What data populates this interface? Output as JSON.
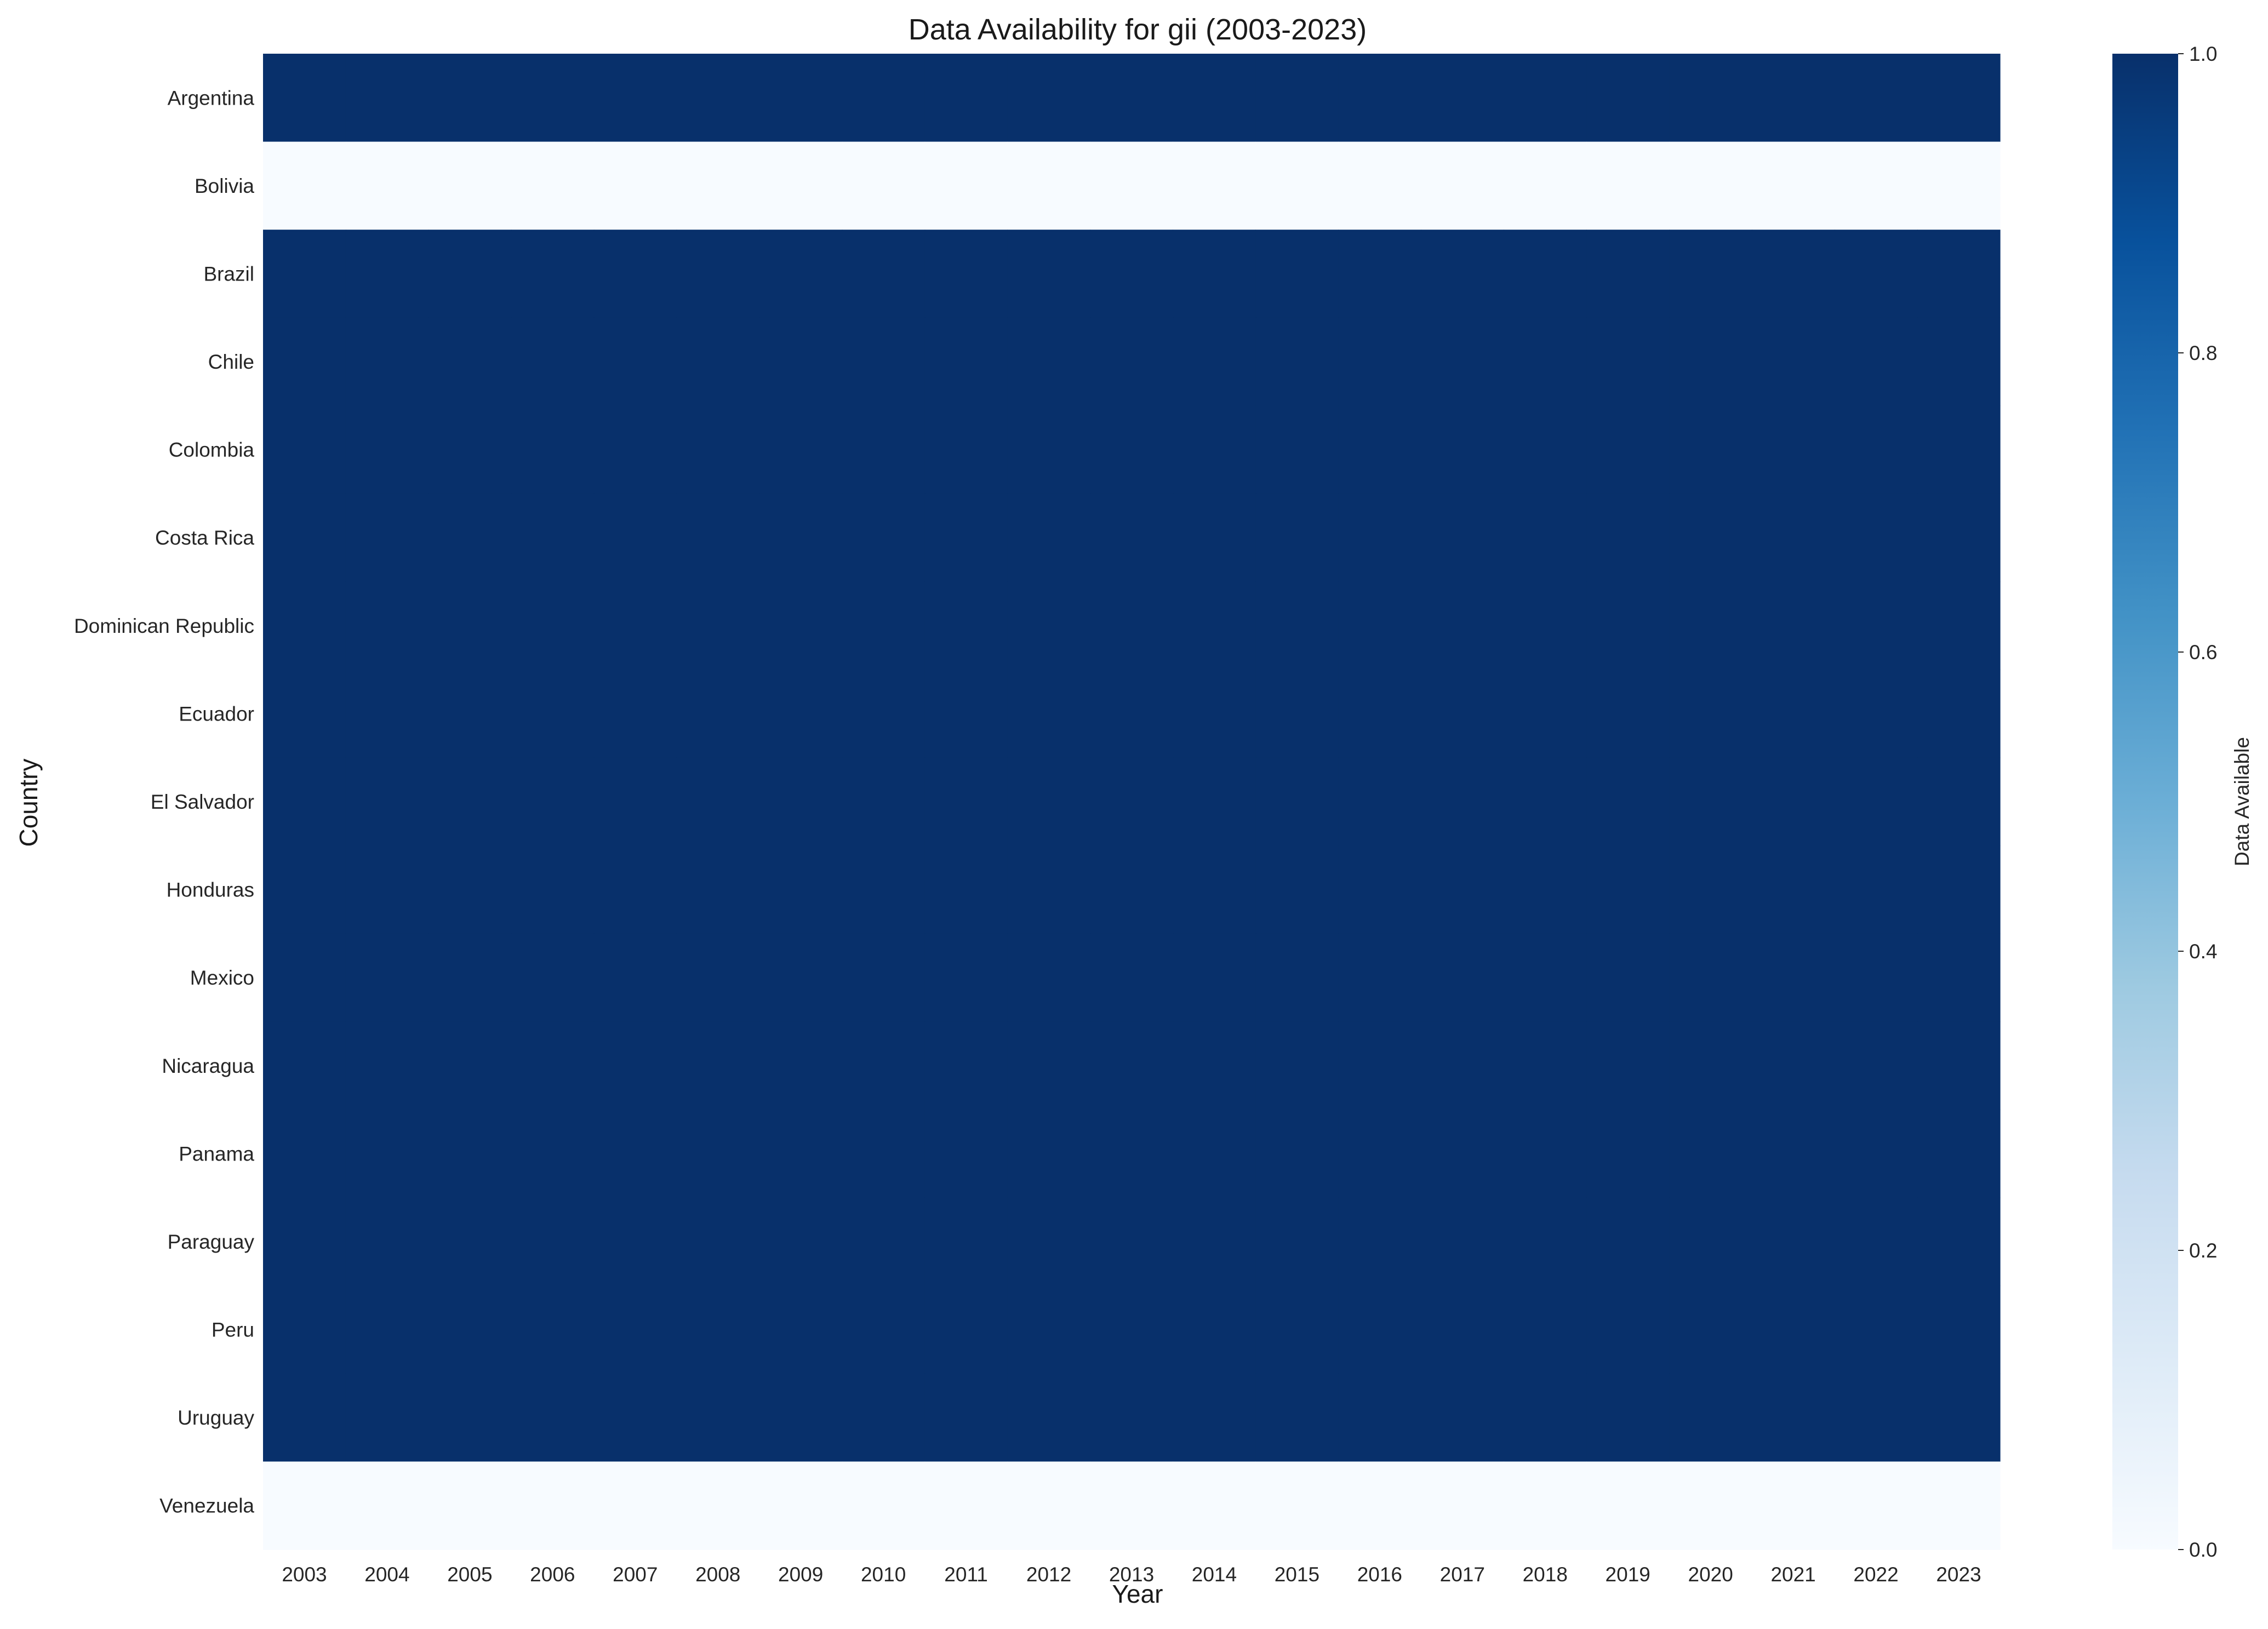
{
  "chart_data": {
    "type": "heatmap",
    "title": "Data Availability for gii (2003-2023)",
    "xlabel": "Year",
    "ylabel": "Country",
    "x": [
      2003,
      2004,
      2005,
      2006,
      2007,
      2008,
      2009,
      2010,
      2011,
      2012,
      2013,
      2014,
      2015,
      2016,
      2017,
      2018,
      2019,
      2020,
      2021,
      2022,
      2023
    ],
    "y": [
      "Argentina",
      "Bolivia",
      "Brazil",
      "Chile",
      "Colombia",
      "Costa Rica",
      "Dominican Republic",
      "Ecuador",
      "El Salvador",
      "Honduras",
      "Mexico",
      "Nicaragua",
      "Panama",
      "Paraguay",
      "Peru",
      "Uruguay",
      "Venezuela"
    ],
    "row_values": [
      1,
      0,
      1,
      1,
      1,
      1,
      1,
      1,
      1,
      1,
      1,
      1,
      1,
      1,
      1,
      1,
      0
    ],
    "value_range": [
      0,
      1
    ],
    "colormap": "Blues",
    "colorbar": {
      "label": "Data Available",
      "ticks": [
        0.0,
        0.2,
        0.4,
        0.6,
        0.8,
        1.0
      ],
      "tick_labels": [
        "0.0",
        "0.2",
        "0.4",
        "0.6",
        "0.8",
        "1.0"
      ]
    },
    "colors": {
      "low": "#f7fbff",
      "high": "#08306b"
    },
    "grid": false
  }
}
